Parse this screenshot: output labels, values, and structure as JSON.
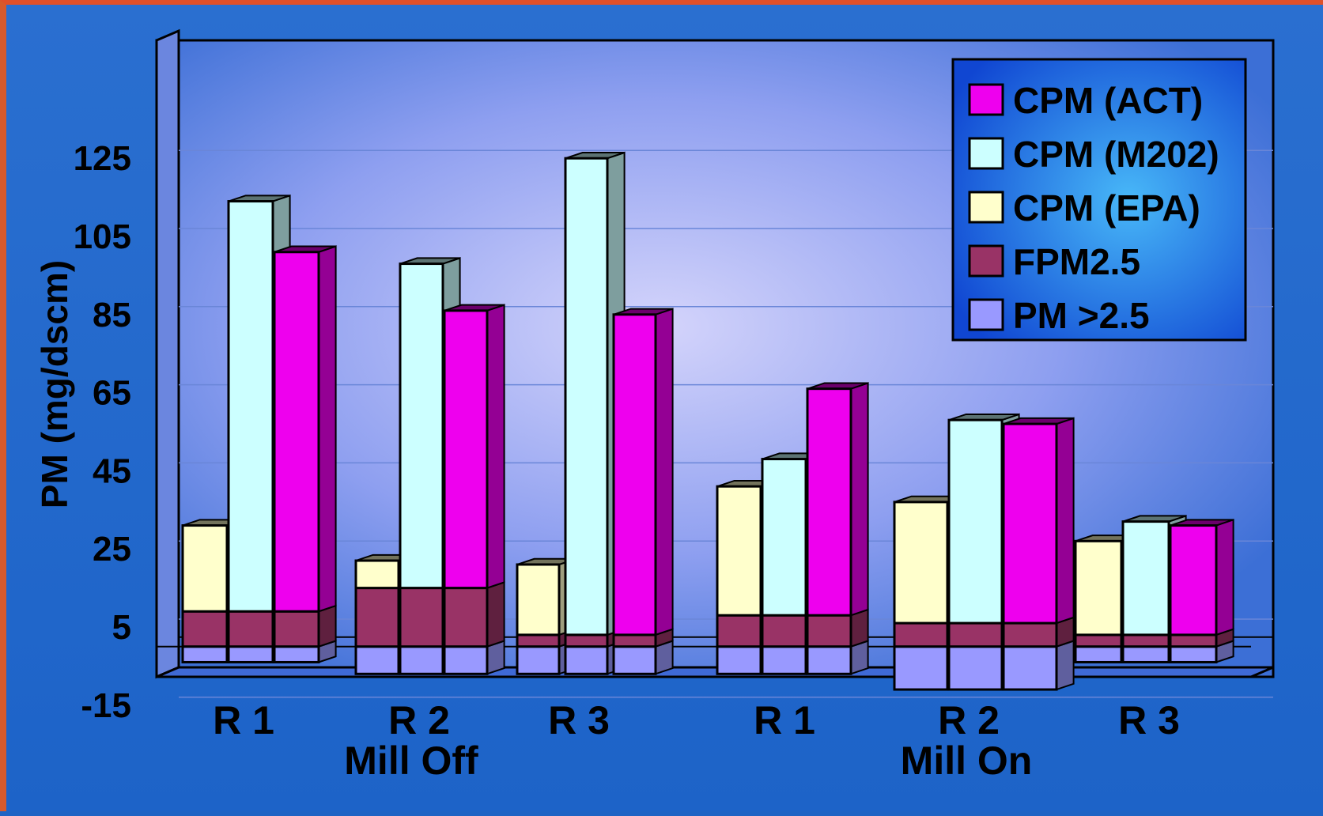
{
  "chart_data": {
    "type": "bar",
    "stacking": "3d-clustered-stacked",
    "ylabel": "PM (mg/dscm)",
    "ylim": [
      -15,
      145
    ],
    "yticks": [
      -15,
      5,
      25,
      45,
      65,
      85,
      105,
      125
    ],
    "groups": [
      {
        "label": "Mill Off",
        "runs": [
          "R 1",
          "R 2",
          "R 3"
        ]
      },
      {
        "label": "Mill On",
        "runs": [
          "R 1",
          "R 2",
          "R 3"
        ]
      }
    ],
    "runs": [
      {
        "label": "R 1",
        "group": "Mill Off",
        "pm_gt_2_5": -4,
        "fpm2_5": 9,
        "cpm_epa": 31,
        "cpm_m202": 114,
        "cpm_act": 101
      },
      {
        "label": "R 2",
        "group": "Mill Off",
        "pm_gt_2_5": -7,
        "fpm2_5": 15,
        "cpm_epa": 22,
        "cpm_m202": 98,
        "cpm_act": 86
      },
      {
        "label": "R 3",
        "group": "Mill Off",
        "pm_gt_2_5": -7,
        "fpm2_5": 3,
        "cpm_epa": 21,
        "cpm_m202": 125,
        "cpm_act": 85
      },
      {
        "label": "R 1",
        "group": "Mill On",
        "pm_gt_2_5": -7,
        "fpm2_5": 8,
        "cpm_epa": 41,
        "cpm_m202": 48,
        "cpm_act": 66
      },
      {
        "label": "R 2",
        "group": "Mill On",
        "pm_gt_2_5": -11,
        "fpm2_5": 6,
        "cpm_epa": 37,
        "cpm_m202": 58,
        "cpm_act": 57
      },
      {
        "label": "R 3",
        "group": "Mill On",
        "pm_gt_2_5": -4,
        "fpm2_5": 3,
        "cpm_epa": 27,
        "cpm_m202": 32,
        "cpm_act": 31
      }
    ],
    "legend": [
      {
        "label": "CPM (ACT)",
        "color": "#ee00ee",
        "key": "cpm_act"
      },
      {
        "label": "CPM (M202)",
        "color": "#ccffff",
        "key": "cpm_m202"
      },
      {
        "label": "CPM (EPA)",
        "color": "#ffffcc",
        "key": "cpm_epa"
      },
      {
        "label": "FPM2.5",
        "color": "#993366",
        "key": "fpm2_5"
      },
      {
        "label": "PM >2.5",
        "color": "#9999ff",
        "key": "pm_gt_2_5"
      }
    ],
    "legend_position": "top-right",
    "grid": true
  }
}
